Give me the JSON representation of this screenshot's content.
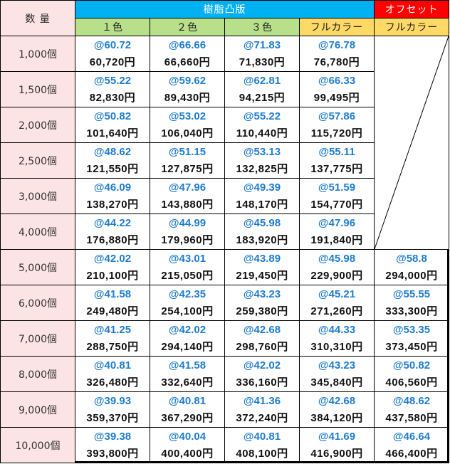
{
  "header": {
    "qty_label": "数 量",
    "group_resin": "樹脂凸版",
    "group_offset": "オフセット",
    "columns": [
      "１色",
      "２色",
      "３色",
      "フルカラー",
      "フルカラー"
    ]
  },
  "colors": {
    "resin_header": "#00b0f0",
    "offset_header": "#ff0000",
    "color_sub_header": "#b8df8a",
    "fullcolor_sub_header": "#ffd966",
    "qty_column_bg": "#fde4e4",
    "unit_price_text": "#1f7ccc"
  },
  "rows": [
    {
      "qty": "1,000個",
      "cells": [
        {
          "unit": "@60.72",
          "total": "60,720円"
        },
        {
          "unit": "@66.66",
          "total": "66,660円"
        },
        {
          "unit": "@71.83",
          "total": "71,830円"
        },
        {
          "unit": "@76.78",
          "total": "76,780円"
        },
        null
      ]
    },
    {
      "qty": "1,500個",
      "cells": [
        {
          "unit": "@55.22",
          "total": "82,830円"
        },
        {
          "unit": "@59.62",
          "total": "89,430円"
        },
        {
          "unit": "@62.81",
          "total": "94,215円"
        },
        {
          "unit": "@66.33",
          "total": "99,495円"
        },
        null
      ]
    },
    {
      "qty": "2,000個",
      "cells": [
        {
          "unit": "@50.82",
          "total": "101,640円"
        },
        {
          "unit": "@53.02",
          "total": "106,040円"
        },
        {
          "unit": "@55.22",
          "total": "110,440円"
        },
        {
          "unit": "@57.86",
          "total": "115,720円"
        },
        null
      ]
    },
    {
      "qty": "2,500個",
      "cells": [
        {
          "unit": "@48.62",
          "total": "121,550円"
        },
        {
          "unit": "@51.15",
          "total": "127,875円"
        },
        {
          "unit": "@53.13",
          "total": "132,825円"
        },
        {
          "unit": "@55.11",
          "total": "137,775円"
        },
        null
      ]
    },
    {
      "qty": "3,000個",
      "cells": [
        {
          "unit": "@46.09",
          "total": "138,270円"
        },
        {
          "unit": "@47.96",
          "total": "143,880円"
        },
        {
          "unit": "@49.39",
          "total": "148,170円"
        },
        {
          "unit": "@51.59",
          "total": "154,770円"
        },
        null
      ]
    },
    {
      "qty": "4,000個",
      "cells": [
        {
          "unit": "@44.22",
          "total": "176,880円"
        },
        {
          "unit": "@44.99",
          "total": "179,960円"
        },
        {
          "unit": "@45.98",
          "total": "183,920円"
        },
        {
          "unit": "@47.96",
          "total": "191,840円"
        },
        null
      ]
    },
    {
      "qty": "5,000個",
      "cells": [
        {
          "unit": "@42.02",
          "total": "210,100円"
        },
        {
          "unit": "@43.01",
          "total": "215,050円"
        },
        {
          "unit": "@43.89",
          "total": "219,450円"
        },
        {
          "unit": "@45.98",
          "total": "229,900円"
        },
        {
          "unit": "@58.8",
          "total": "294,000円"
        }
      ]
    },
    {
      "qty": "6,000個",
      "cells": [
        {
          "unit": "@41.58",
          "total": "249,480円"
        },
        {
          "unit": "@42.35",
          "total": "254,100円"
        },
        {
          "unit": "@43.23",
          "total": "259,380円"
        },
        {
          "unit": "@45.21",
          "total": "271,260円"
        },
        {
          "unit": "@55.55",
          "total": "333,300円"
        }
      ]
    },
    {
      "qty": "7,000個",
      "cells": [
        {
          "unit": "@41.25",
          "total": "288,750円"
        },
        {
          "unit": "@42.02",
          "total": "294,140円"
        },
        {
          "unit": "@42.68",
          "total": "298,760円"
        },
        {
          "unit": "@44.33",
          "total": "310,310円"
        },
        {
          "unit": "@53.35",
          "total": "373,450円"
        }
      ]
    },
    {
      "qty": "8,000個",
      "cells": [
        {
          "unit": "@40.81",
          "total": "326,480円"
        },
        {
          "unit": "@41.58",
          "total": "332,640円"
        },
        {
          "unit": "@42.02",
          "total": "336,160円"
        },
        {
          "unit": "@43.23",
          "total": "345,840円"
        },
        {
          "unit": "@50.82",
          "total": "406,560円"
        }
      ]
    },
    {
      "qty": "9,000個",
      "cells": [
        {
          "unit": "@39.93",
          "total": "359,370円"
        },
        {
          "unit": "@40.81",
          "total": "367,290円"
        },
        {
          "unit": "@41.36",
          "total": "372,240円"
        },
        {
          "unit": "@42.68",
          "total": "384,120円"
        },
        {
          "unit": "@48.62",
          "total": "437,580円"
        }
      ]
    },
    {
      "qty": "10,000個",
      "cells": [
        {
          "unit": "@39.38",
          "total": "393,800円"
        },
        {
          "unit": "@40.04",
          "total": "400,400円"
        },
        {
          "unit": "@40.81",
          "total": "408,100円"
        },
        {
          "unit": "@41.69",
          "total": "416,900円"
        },
        {
          "unit": "@46.64",
          "total": "466,400円"
        }
      ]
    }
  ]
}
